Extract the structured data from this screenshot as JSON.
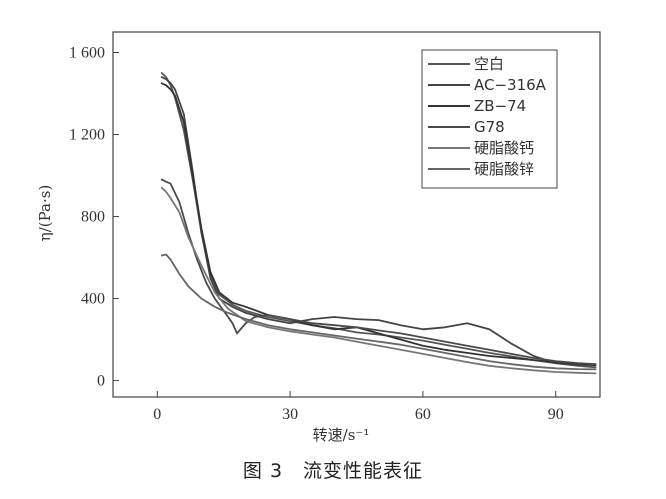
{
  "chart_data": {
    "type": "line",
    "xlabel": "转速/s⁻¹",
    "ylabel": "η/(Pa·s)",
    "xlim": [
      -10,
      100
    ],
    "ylim": [
      -80,
      1700
    ],
    "x_ticks": [
      0,
      30,
      60,
      90
    ],
    "x_tick_labels": [
      "0",
      "30",
      "60",
      "90"
    ],
    "y_ticks": [
      0,
      400,
      800,
      1200,
      1600
    ],
    "y_tick_labels": [
      "0",
      "400",
      "800",
      "1 200",
      "1 600"
    ],
    "grid": false,
    "legend_position": "top-right",
    "series": [
      {
        "name": "空白",
        "color": "#555555",
        "x": [
          1,
          2,
          3,
          4,
          6,
          8,
          10,
          12,
          14,
          17,
          20,
          25,
          30,
          35,
          40,
          45,
          50,
          55,
          60,
          65,
          70,
          75,
          80,
          85,
          90,
          95,
          99
        ],
        "y": [
          1500,
          1480,
          1440,
          1380,
          1220,
          980,
          720,
          520,
          420,
          370,
          340,
          310,
          290,
          270,
          255,
          235,
          225,
          210,
          195,
          175,
          155,
          135,
          118,
          100,
          85,
          72,
          65
        ]
      },
      {
        "name": "AC−316A",
        "color": "#444444",
        "x": [
          1,
          2,
          3,
          4,
          6,
          8,
          10,
          12,
          14,
          17,
          20,
          25,
          30,
          35,
          40,
          45,
          50,
          55,
          60,
          65,
          70,
          75,
          80,
          85,
          90,
          95,
          99
        ],
        "y": [
          1480,
          1470,
          1450,
          1420,
          1300,
          1020,
          720,
          500,
          400,
          360,
          330,
          300,
          280,
          300,
          310,
          300,
          295,
          270,
          250,
          260,
          280,
          250,
          180,
          120,
          85,
          80,
          78
        ]
      },
      {
        "name": "ZB−74",
        "color": "#333333",
        "x": [
          1,
          2,
          3,
          4,
          6,
          8,
          10,
          12,
          14,
          17,
          20,
          25,
          30,
          35,
          40,
          45,
          50,
          55,
          60,
          65,
          70,
          75,
          80,
          85,
          90,
          95,
          99
        ],
        "y": [
          1450,
          1440,
          1420,
          1390,
          1260,
          1000,
          740,
          530,
          430,
          380,
          360,
          320,
          300,
          270,
          250,
          260,
          230,
          200,
          170,
          150,
          135,
          120,
          110,
          100,
          90,
          80,
          75
        ]
      },
      {
        "name": "G78",
        "color": "#4a4a4a",
        "x": [
          1,
          2,
          3,
          5,
          7,
          9,
          11,
          13,
          15,
          17,
          18,
          20,
          22,
          25,
          30,
          35,
          40,
          45,
          50,
          55,
          60,
          65,
          70,
          75,
          80,
          85,
          90,
          95,
          99
        ],
        "y": [
          980,
          970,
          960,
          870,
          720,
          590,
          480,
          400,
          340,
          280,
          230,
          280,
          310,
          320,
          300,
          280,
          270,
          260,
          245,
          230,
          210,
          190,
          170,
          150,
          130,
          110,
          95,
          85,
          80
        ]
      },
      {
        "name": "硬脂酸钙",
        "color": "#777777",
        "x": [
          1,
          2,
          3,
          5,
          7,
          10,
          13,
          16,
          20,
          25,
          30,
          35,
          40,
          45,
          50,
          55,
          60,
          65,
          70,
          75,
          80,
          85,
          90,
          95,
          99
        ],
        "y": [
          940,
          920,
          890,
          820,
          700,
          560,
          430,
          350,
          290,
          260,
          240,
          225,
          210,
          190,
          170,
          150,
          130,
          110,
          90,
          72,
          60,
          50,
          42,
          38,
          35
        ]
      },
      {
        "name": "硬脂酸锌",
        "color": "#666666",
        "x": [
          1,
          2,
          3,
          5,
          7,
          10,
          13,
          16,
          20,
          25,
          30,
          35,
          40,
          45,
          50,
          55,
          60,
          65,
          70,
          75,
          80,
          85,
          90,
          95,
          99
        ],
        "y": [
          610,
          615,
          590,
          520,
          460,
          400,
          360,
          330,
          300,
          270,
          250,
          235,
          220,
          205,
          190,
          175,
          155,
          135,
          115,
          95,
          80,
          68,
          60,
          56,
          55
        ]
      }
    ]
  },
  "caption": "图 3　流变性能表征"
}
